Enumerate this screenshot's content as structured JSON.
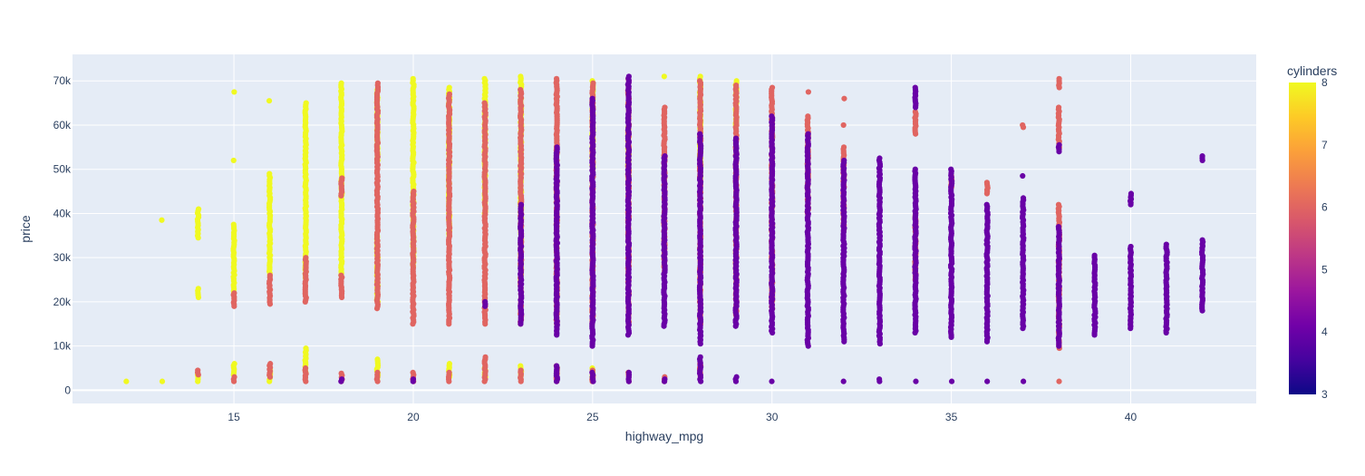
{
  "chart_data": {
    "type": "scatter",
    "title": "",
    "xlabel": "highway_mpg",
    "ylabel": "price",
    "xlim": [
      10.5,
      43.5
    ],
    "ylim": [
      -3000,
      76000
    ],
    "x_ticks": [
      15,
      20,
      25,
      30,
      35,
      40
    ],
    "x_tick_labels": [
      "15",
      "20",
      "25",
      "30",
      "35",
      "40"
    ],
    "y_ticks": [
      0,
      10000,
      20000,
      30000,
      40000,
      50000,
      60000,
      70000
    ],
    "y_tick_labels": [
      "0",
      "10k",
      "20k",
      "30k",
      "40k",
      "50k",
      "60k",
      "70k"
    ],
    "grid": true,
    "colorbar": {
      "title": "cylinders",
      "range": [
        3,
        8
      ],
      "ticks": [
        3,
        4,
        5,
        6,
        7,
        8
      ],
      "tick_labels": [
        "3",
        "4",
        "5",
        "6",
        "7",
        "8"
      ],
      "colorscale": [
        "#0d0887",
        "#46039f",
        "#7201a8",
        "#9c179e",
        "#bd3786",
        "#d8576b",
        "#ed7953",
        "#fb9f3a",
        "#fdca26",
        "#f0f921"
      ]
    },
    "colors": {
      "plot_bg": "#e5ecf6",
      "grid": "#ffffff",
      "text": "#2a3f5f"
    },
    "clusters": [
      {
        "x": 12,
        "cyl": 8,
        "ranges": [
          [
            2000,
            2200
          ]
        ]
      },
      {
        "x": 13,
        "cyl": 8,
        "ranges": [
          [
            2000,
            2200
          ],
          [
            38500,
            38500
          ]
        ]
      },
      {
        "x": 14,
        "cyl": 8,
        "ranges": [
          [
            2000,
            3500
          ],
          [
            21000,
            23000
          ],
          [
            34500,
            41000
          ]
        ]
      },
      {
        "x": 14,
        "cyl": 6,
        "ranges": [
          [
            3500,
            4500
          ]
        ]
      },
      {
        "x": 15,
        "cyl": 8,
        "ranges": [
          [
            3500,
            6000
          ],
          [
            22000,
            37500
          ],
          [
            52000,
            52000
          ],
          [
            67500,
            67500
          ]
        ]
      },
      {
        "x": 15,
        "cyl": 6,
        "ranges": [
          [
            2000,
            3000
          ],
          [
            19000,
            22000
          ]
        ]
      },
      {
        "x": 16,
        "cyl": 8,
        "ranges": [
          [
            2000,
            5000
          ],
          [
            26000,
            49000
          ],
          [
            65500,
            65500
          ]
        ]
      },
      {
        "x": 16,
        "cyl": 6,
        "ranges": [
          [
            3000,
            6000
          ],
          [
            19500,
            26000
          ]
        ]
      },
      {
        "x": 17,
        "cyl": 8,
        "ranges": [
          [
            4000,
            9500
          ],
          [
            25000,
            65000
          ]
        ]
      },
      {
        "x": 17,
        "cyl": 6,
        "ranges": [
          [
            2000,
            5000
          ],
          [
            20000,
            30000
          ]
        ]
      },
      {
        "x": 18,
        "cyl": 8,
        "ranges": [
          [
            26000,
            69500
          ]
        ]
      },
      {
        "x": 18,
        "cyl": 6,
        "ranges": [
          [
            2000,
            3800
          ],
          [
            21000,
            26000
          ],
          [
            44000,
            48000
          ]
        ]
      },
      {
        "x": 18,
        "cyl": 4,
        "ranges": [
          [
            2000,
            2500
          ]
        ]
      },
      {
        "x": 19,
        "cyl": 8,
        "ranges": [
          [
            2500,
            7000
          ],
          [
            20000,
            35000
          ],
          [
            52000,
            68000
          ]
        ]
      },
      {
        "x": 19,
        "cyl": 6,
        "ranges": [
          [
            2000,
            4000
          ],
          [
            18500,
            69500
          ]
        ]
      },
      {
        "x": 20,
        "cyl": 8,
        "ranges": [
          [
            28000,
            70500
          ]
        ]
      },
      {
        "x": 20,
        "cyl": 6,
        "ranges": [
          [
            2000,
            4000
          ],
          [
            15000,
            45000
          ]
        ]
      },
      {
        "x": 20,
        "cyl": 4,
        "ranges": [
          [
            2000,
            2500
          ]
        ]
      },
      {
        "x": 21,
        "cyl": 8,
        "ranges": [
          [
            3000,
            6000
          ],
          [
            35000,
            68500
          ]
        ]
      },
      {
        "x": 21,
        "cyl": 6,
        "ranges": [
          [
            2000,
            4000
          ],
          [
            15000,
            67000
          ]
        ]
      },
      {
        "x": 22,
        "cyl": 8,
        "ranges": [
          [
            3000,
            5000
          ],
          [
            40000,
            70500
          ]
        ]
      },
      {
        "x": 22,
        "cyl": 6,
        "ranges": [
          [
            2000,
            7500
          ],
          [
            15000,
            65000
          ]
        ]
      },
      {
        "x": 22,
        "cyl": 4,
        "ranges": [
          [
            19000,
            20000
          ]
        ]
      },
      {
        "x": 23,
        "cyl": 8,
        "ranges": [
          [
            3000,
            5500
          ],
          [
            25000,
            71000
          ]
        ]
      },
      {
        "x": 23,
        "cyl": 6,
        "ranges": [
          [
            2000,
            4500
          ],
          [
            15000,
            68000
          ]
        ]
      },
      {
        "x": 23,
        "cyl": 4,
        "ranges": [
          [
            15000,
            42000
          ]
        ]
      },
      {
        "x": 24,
        "cyl": 6,
        "ranges": [
          [
            2000,
            5500
          ],
          [
            15000,
            70500
          ]
        ]
      },
      {
        "x": 24,
        "cyl": 4,
        "ranges": [
          [
            2000,
            5500
          ],
          [
            12500,
            55000
          ]
        ]
      },
      {
        "x": 25,
        "cyl": 8,
        "ranges": [
          [
            3000,
            5000
          ],
          [
            50000,
            70000
          ]
        ]
      },
      {
        "x": 25,
        "cyl": 6,
        "ranges": [
          [
            2000,
            4500
          ],
          [
            15000,
            69500
          ]
        ]
      },
      {
        "x": 25,
        "cyl": 4,
        "ranges": [
          [
            2000,
            4000
          ],
          [
            10000,
            66000
          ]
        ]
      },
      {
        "x": 26,
        "cyl": 8,
        "ranges": [
          [
            48000,
            60000
          ]
        ]
      },
      {
        "x": 26,
        "cyl": 6,
        "ranges": [
          [
            2000,
            4000
          ],
          [
            15000,
            70500
          ]
        ]
      },
      {
        "x": 26,
        "cyl": 4,
        "ranges": [
          [
            2000,
            4000
          ],
          [
            12500,
            71000
          ]
        ]
      },
      {
        "x": 27,
        "cyl": 8,
        "ranges": [
          [
            71000,
            71000
          ]
        ]
      },
      {
        "x": 27,
        "cyl": 6,
        "ranges": [
          [
            2000,
            3000
          ],
          [
            27000,
            64000
          ]
        ]
      },
      {
        "x": 27,
        "cyl": 4,
        "ranges": [
          [
            2000,
            2500
          ],
          [
            14500,
            53000
          ]
        ]
      },
      {
        "x": 28,
        "cyl": 8,
        "ranges": [
          [
            48000,
            71000
          ]
        ]
      },
      {
        "x": 28,
        "cyl": 6,
        "ranges": [
          [
            3000,
            6000
          ],
          [
            15000,
            70000
          ]
        ]
      },
      {
        "x": 28,
        "cyl": 4,
        "ranges": [
          [
            2000,
            7500
          ],
          [
            10500,
            58000
          ]
        ]
      },
      {
        "x": 29,
        "cyl": 8,
        "ranges": [
          [
            60000,
            70000
          ]
        ]
      },
      {
        "x": 29,
        "cyl": 6,
        "ranges": [
          [
            17000,
            69000
          ]
        ]
      },
      {
        "x": 29,
        "cyl": 4,
        "ranges": [
          [
            2000,
            3000
          ],
          [
            14500,
            57000
          ]
        ]
      },
      {
        "x": 30,
        "cyl": 6,
        "ranges": [
          [
            18000,
            68500
          ]
        ]
      },
      {
        "x": 30,
        "cyl": 4,
        "ranges": [
          [
            2000,
            2200
          ],
          [
            13000,
            62000
          ]
        ]
      },
      {
        "x": 31,
        "cyl": 6,
        "ranges": [
          [
            40000,
            62000
          ],
          [
            67500,
            67500
          ]
        ]
      },
      {
        "x": 31,
        "cyl": 4,
        "ranges": [
          [
            10000,
            58000
          ]
        ]
      },
      {
        "x": 32,
        "cyl": 6,
        "ranges": [
          [
            36000,
            55000
          ],
          [
            60000,
            60000
          ],
          [
            66000,
            66000
          ]
        ]
      },
      {
        "x": 32,
        "cyl": 4,
        "ranges": [
          [
            2000,
            2200
          ],
          [
            11000,
            52000
          ]
        ]
      },
      {
        "x": 33,
        "cyl": 4,
        "ranges": [
          [
            2000,
            2500
          ],
          [
            10500,
            52500
          ]
        ]
      },
      {
        "x": 34,
        "cyl": 6,
        "ranges": [
          [
            25000,
            40000
          ],
          [
            58000,
            63000
          ]
        ]
      },
      {
        "x": 34,
        "cyl": 4,
        "ranges": [
          [
            2000,
            2200
          ],
          [
            13000,
            50000
          ],
          [
            64000,
            68500
          ]
        ]
      },
      {
        "x": 35,
        "cyl": 6,
        "ranges": [
          [
            46000,
            48500
          ]
        ]
      },
      {
        "x": 35,
        "cyl": 4,
        "ranges": [
          [
            2000,
            2200
          ],
          [
            12000,
            50000
          ]
        ]
      },
      {
        "x": 36,
        "cyl": 6,
        "ranges": [
          [
            44500,
            47000
          ]
        ]
      },
      {
        "x": 36,
        "cyl": 4,
        "ranges": [
          [
            2000,
            2200
          ],
          [
            11000,
            42000
          ]
        ]
      },
      {
        "x": 37,
        "cyl": 6,
        "ranges": [
          [
            59500,
            60000
          ]
        ]
      },
      {
        "x": 37,
        "cyl": 4,
        "ranges": [
          [
            2000,
            2200
          ],
          [
            14000,
            43500
          ],
          [
            48500,
            48500
          ]
        ]
      },
      {
        "x": 38,
        "cyl": 6,
        "ranges": [
          [
            2000,
            2200
          ],
          [
            9500,
            42000
          ],
          [
            54500,
            64000
          ],
          [
            68500,
            70500
          ]
        ]
      },
      {
        "x": 38,
        "cyl": 4,
        "ranges": [
          [
            10000,
            37000
          ],
          [
            54000,
            55500
          ]
        ]
      },
      {
        "x": 39,
        "cyl": 4,
        "ranges": [
          [
            12500,
            30500
          ]
        ]
      },
      {
        "x": 40,
        "cyl": 4,
        "ranges": [
          [
            14000,
            32500
          ],
          [
            42000,
            44500
          ]
        ]
      },
      {
        "x": 41,
        "cyl": 4,
        "ranges": [
          [
            13000,
            33000
          ]
        ]
      },
      {
        "x": 42,
        "cyl": 4,
        "ranges": [
          [
            18000,
            34000
          ],
          [
            52000,
            53000
          ]
        ]
      }
    ]
  }
}
